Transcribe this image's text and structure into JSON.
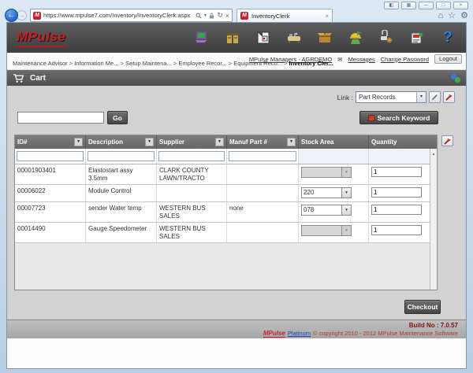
{
  "browser": {
    "url": "https://www.mpulse7.com/Inventory/InventoryClerk.aspx",
    "tab_title": "InventoryClerk"
  },
  "appbar": {
    "brand": "MPulse",
    "icons": [
      "computer",
      "cabinet",
      "calendar",
      "equipment",
      "inventory-box",
      "worker",
      "parts",
      "media",
      "help"
    ],
    "help_glyph": "?"
  },
  "session": {
    "user": "MPulse Managers - AGRDEMO",
    "messages": "Messages",
    "change_password": "Change Password",
    "logout": "Logout"
  },
  "breadcrumb": {
    "items": [
      "Maintenance Advisor",
      "Information Me...",
      "Setup Maintena...",
      "Employee Recor...",
      "Equipment Reco...",
      "Inventory Cler..."
    ]
  },
  "cart": {
    "title": "Cart"
  },
  "link_bar": {
    "label": "Link :",
    "selected": "Part Records"
  },
  "search": {
    "input_value": "",
    "go": "Go",
    "keyword": "Search Keyword"
  },
  "grid": {
    "columns": [
      "ID#",
      "Description",
      "Supplier",
      "Manuf Part #",
      "Stock Area",
      "Quantity"
    ],
    "rows": [
      {
        "id": "00001903401",
        "description": "Elastostart assy 3.5mm",
        "supplier": "CLARK COUNTY LAWN/TRACTO",
        "manuf_part": "",
        "stock_area": "",
        "stock_disabled": true,
        "quantity": "1"
      },
      {
        "id": "00006022",
        "description": "Module Control",
        "supplier": "",
        "manuf_part": "",
        "stock_area": "220",
        "stock_disabled": false,
        "quantity": "1"
      },
      {
        "id": "00007723",
        "description": "sender Water temp",
        "supplier": "WESTERN BUS SALES",
        "manuf_part": "none",
        "stock_area": "078",
        "stock_disabled": false,
        "quantity": "1"
      },
      {
        "id": "00014490",
        "description": "Gauge Speedometer",
        "supplier": "WESTERN BUS SALES",
        "manuf_part": "",
        "stock_area": "",
        "stock_disabled": true,
        "quantity": "1"
      }
    ]
  },
  "checkout": "Checkout",
  "footer": {
    "build": "Build No : 7.0.57",
    "brand": "MPulse",
    "platinum": "Platinum",
    "copyright": "© copyright 2010 - 2012 MPulse Maintenance Software"
  },
  "colors": {
    "accent_red": "#c8202a",
    "bar_dark": "#4d4d4d",
    "panel_gray": "#d2d2d2"
  }
}
